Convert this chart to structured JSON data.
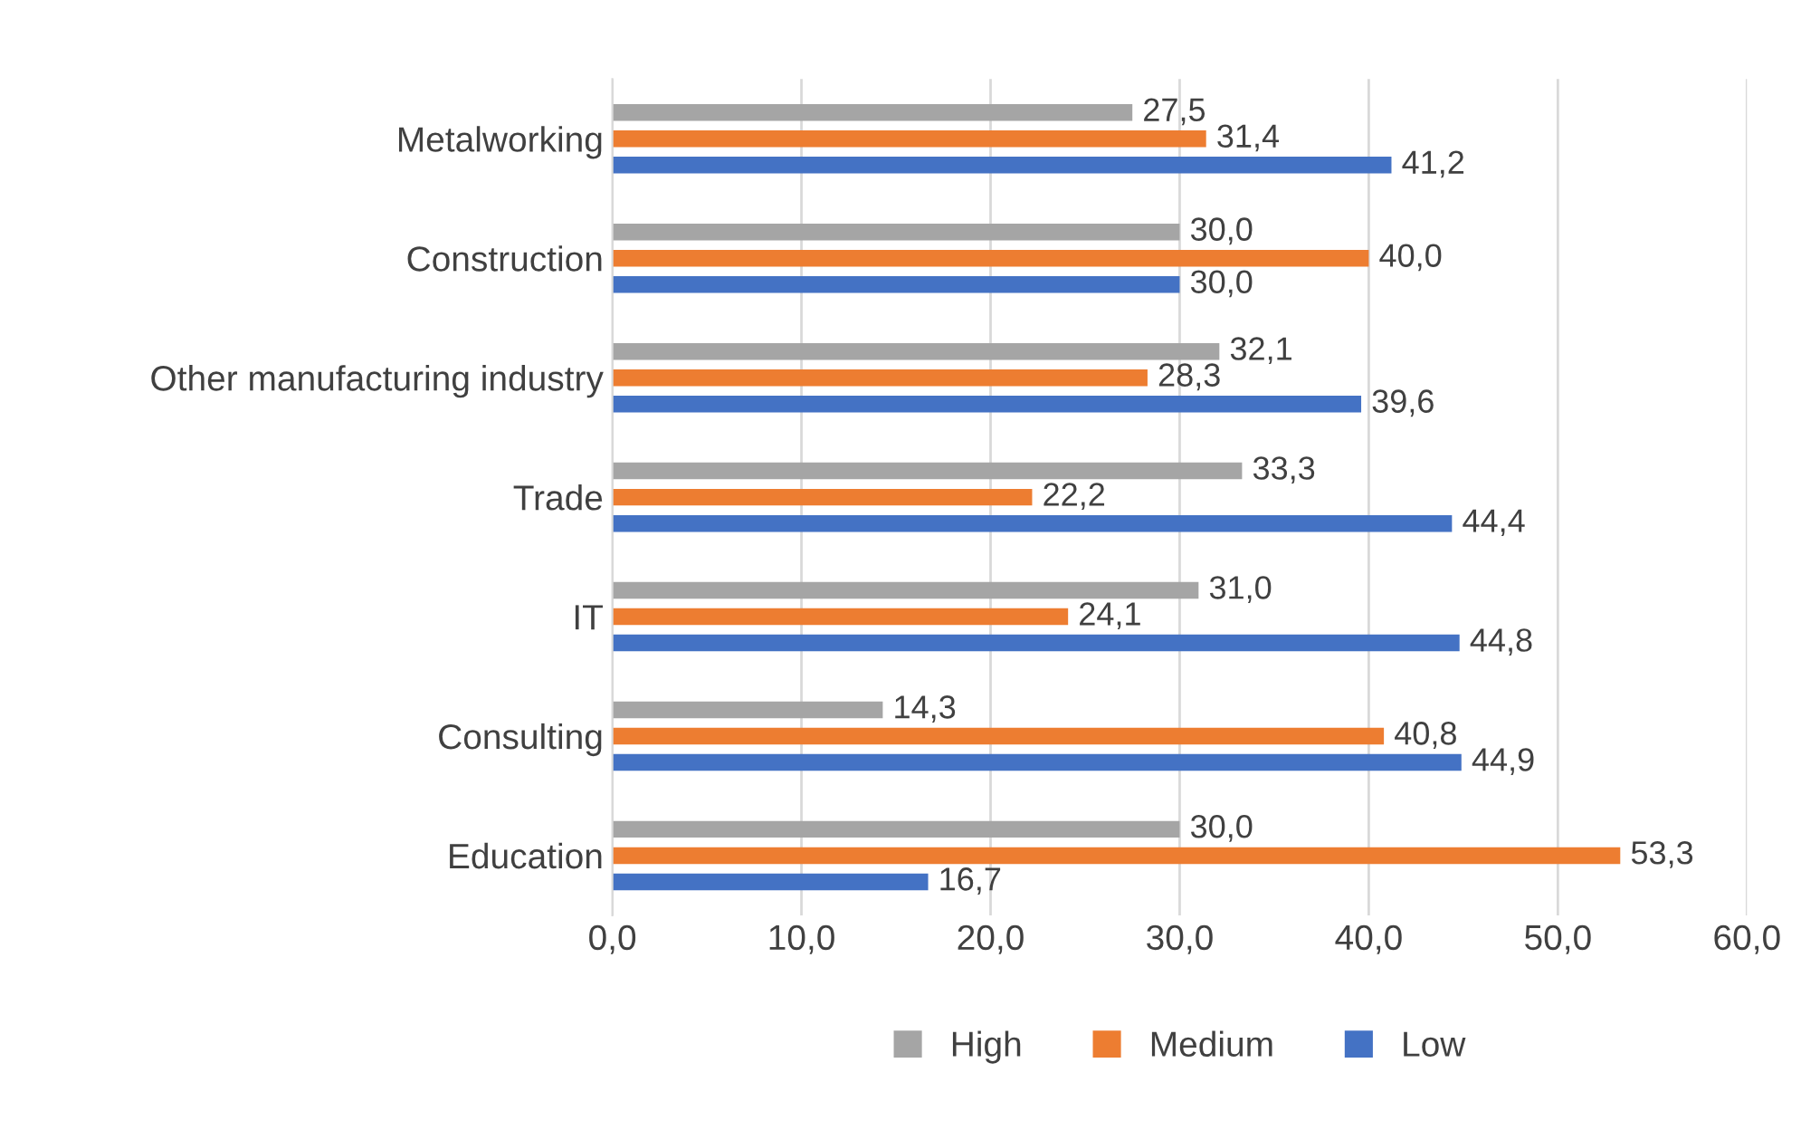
{
  "chart_data": {
    "type": "bar",
    "orientation": "horizontal",
    "categories": [
      "Metalworking",
      "Construction",
      "Other manufacturing industry",
      "Trade",
      "IT",
      "Consulting",
      "Education"
    ],
    "series": [
      {
        "name": "High",
        "color": "#a5a5a5",
        "values": [
          27.5,
          30.0,
          32.1,
          33.3,
          31.0,
          14.3,
          30.0
        ],
        "value_labels": [
          "27,5",
          "30,0",
          "32,1",
          "33,3",
          "31,0",
          "14,3",
          "30,0"
        ]
      },
      {
        "name": "Medium",
        "color": "#ed7d31",
        "values": [
          31.4,
          40.0,
          28.3,
          22.2,
          24.1,
          40.8,
          53.3
        ],
        "value_labels": [
          "31,4",
          "40,0",
          "28,3",
          "22,2",
          "24,1",
          "40,8",
          "53,3"
        ]
      },
      {
        "name": "Low",
        "color": "#4472c4",
        "values": [
          41.2,
          30.0,
          39.6,
          44.4,
          44.8,
          44.9,
          16.7
        ],
        "value_labels": [
          "41,2",
          "30,0",
          "39,6",
          "44,4",
          "44,8",
          "44,9",
          "16,7"
        ]
      }
    ],
    "xlim": [
      0,
      60
    ],
    "xticks": [
      {
        "value": 0,
        "label": "0,0"
      },
      {
        "value": 10,
        "label": "10,0"
      },
      {
        "value": 20,
        "label": "20,0"
      },
      {
        "value": 30,
        "label": "30,0"
      },
      {
        "value": 40,
        "label": "40,0"
      },
      {
        "value": 50,
        "label": "50,0"
      },
      {
        "value": 60,
        "label": "60,0"
      }
    ],
    "grid": "x",
    "legend": "bottom"
  }
}
